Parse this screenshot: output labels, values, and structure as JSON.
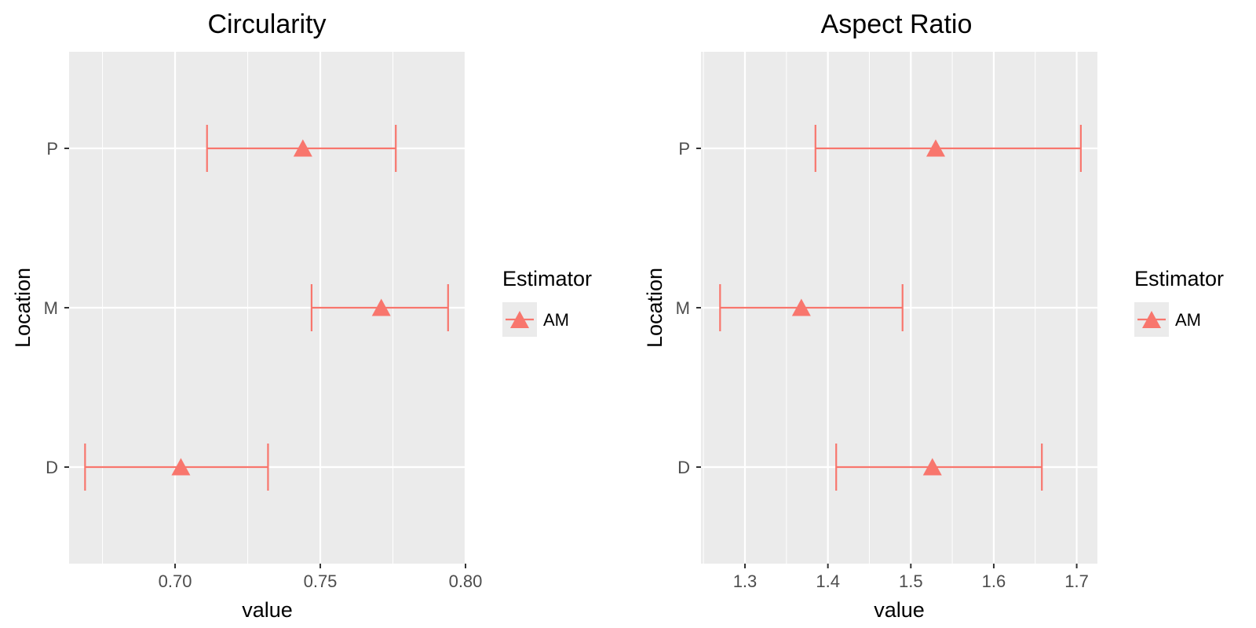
{
  "chart_data": [
    {
      "type": "errorbar",
      "title": "Circularity",
      "xlabel": "value",
      "ylabel": "Location",
      "xlim": [
        0.6635,
        0.8
      ],
      "x_ticks": [
        0.7,
        0.75,
        0.8
      ],
      "x_tick_labels": [
        "0.70",
        "0.75",
        "0.80"
      ],
      "categories": [
        "D",
        "M",
        "P"
      ],
      "points": [
        {
          "category": "P",
          "estimate": 0.744,
          "lower": 0.711,
          "upper": 0.776
        },
        {
          "category": "M",
          "estimate": 0.771,
          "lower": 0.747,
          "upper": 0.794
        },
        {
          "category": "D",
          "estimate": 0.702,
          "lower": 0.669,
          "upper": 0.732
        }
      ],
      "legend": {
        "title": "Estimator",
        "entries": [
          "AM"
        ],
        "placement": "right"
      },
      "color": "#F8766D"
    },
    {
      "type": "errorbar",
      "title": "Aspect Ratio",
      "xlabel": "value",
      "ylabel": "Location",
      "xlim": [
        1.247,
        1.725
      ],
      "x_ticks": [
        1.3,
        1.4,
        1.5,
        1.6,
        1.7
      ],
      "x_tick_labels": [
        "1.3",
        "1.4",
        "1.5",
        "1.6",
        "1.7"
      ],
      "categories": [
        "D",
        "M",
        "P"
      ],
      "points": [
        {
          "category": "P",
          "estimate": 1.53,
          "lower": 1.385,
          "upper": 1.705
        },
        {
          "category": "M",
          "estimate": 1.368,
          "lower": 1.27,
          "upper": 1.49
        },
        {
          "category": "D",
          "estimate": 1.526,
          "lower": 1.41,
          "upper": 1.658
        }
      ],
      "legend": {
        "title": "Estimator",
        "entries": [
          "AM"
        ],
        "placement": "right"
      },
      "color": "#F8766D"
    }
  ]
}
